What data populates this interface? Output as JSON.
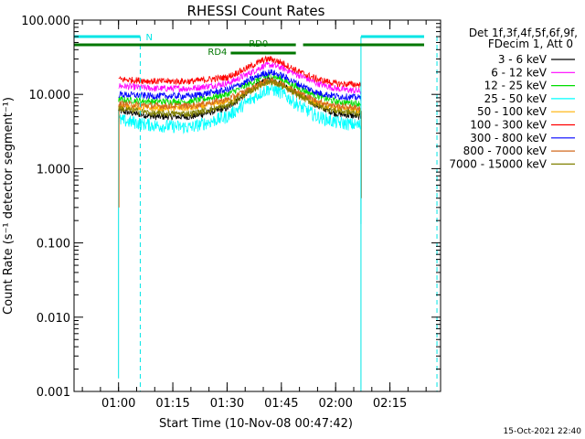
{
  "chart_data": {
    "type": "line",
    "title": "RHESSI Count Rates",
    "xlabel": "Start Time (10-Nov-08 00:47:42)",
    "ylabel": "Count Rate (s⁻¹ detector segment⁻¹)",
    "y_scale": "log",
    "ylim": [
      0.001,
      100
    ],
    "xlim": [
      "00:47:42",
      "02:29:00"
    ],
    "x_ticks": [
      "01:00",
      "01:15",
      "01:30",
      "01:45",
      "02:00",
      "02:15"
    ],
    "y_ticks": [
      "0.001",
      "0.010",
      "0.100",
      "1.000",
      "10.000",
      "100.000"
    ],
    "legend_header": [
      "Det 1f,3f,4f,5f,6f,9f,",
      "FDecim 1, Att 0"
    ],
    "legend_position": "right, outside plot",
    "series": [
      {
        "name": "3 - 6 keV",
        "color": "#000000",
        "x": [
          "01:00",
          "01:10",
          "01:20",
          "01:30",
          "01:35",
          "01:40",
          "01:42",
          "01:45",
          "01:50",
          "01:55",
          "02:00",
          "02:07"
        ],
        "y": [
          6.0,
          5.0,
          5.0,
          6.5,
          10,
          15,
          16,
          14,
          10,
          7,
          5.5,
          5.0
        ]
      },
      {
        "name": "6 - 12 keV",
        "color": "#ff00ff",
        "x": [
          "01:00",
          "01:10",
          "01:20",
          "01:30",
          "01:35",
          "01:40",
          "01:42",
          "01:45",
          "01:50",
          "01:55",
          "02:00",
          "02:07"
        ],
        "y": [
          13,
          12,
          12,
          14,
          18,
          24,
          25,
          23,
          18,
          14,
          12,
          11
        ]
      },
      {
        "name": "12 - 25 keV",
        "color": "#00dd00",
        "x": [
          "01:00",
          "01:10",
          "01:20",
          "01:30",
          "01:35",
          "01:40",
          "01:42",
          "01:45",
          "01:50",
          "01:55",
          "02:00",
          "02:07"
        ],
        "y": [
          8.5,
          8,
          8,
          10,
          13,
          17,
          18,
          16,
          12,
          9.5,
          8,
          7.5
        ]
      },
      {
        "name": "25 - 50 keV",
        "color": "#00ffff",
        "x": [
          "01:00",
          "01:10",
          "01:20",
          "01:30",
          "01:35",
          "01:40",
          "01:42",
          "01:45",
          "01:50",
          "01:55",
          "02:00",
          "02:07"
        ],
        "y": [
          4.5,
          3.8,
          3.6,
          5,
          7.5,
          11,
          12,
          10.5,
          7,
          5,
          4.2,
          3.8
        ]
      },
      {
        "name": "50 - 100 keV",
        "color": "#ffb000",
        "x": [
          "01:00",
          "01:10",
          "01:20",
          "01:30",
          "01:35",
          "01:40",
          "01:42",
          "01:45",
          "01:50",
          "01:55",
          "02:00",
          "02:07"
        ],
        "y": [
          7,
          6.5,
          6.5,
          8,
          10.5,
          14,
          15,
          13.5,
          10,
          7.5,
          6.5,
          6
        ]
      },
      {
        "name": "100 - 300 keV",
        "color": "#ff0000",
        "x": [
          "01:00",
          "01:10",
          "01:20",
          "01:30",
          "01:35",
          "01:40",
          "01:42",
          "01:45",
          "01:50",
          "01:55",
          "02:00",
          "02:07"
        ],
        "y": [
          16,
          15,
          15,
          17,
          22,
          29,
          30,
          27,
          20,
          16,
          14,
          13.5
        ]
      },
      {
        "name": "300 - 800 keV",
        "color": "#0000ff",
        "x": [
          "01:00",
          "01:10",
          "01:20",
          "01:30",
          "01:35",
          "01:40",
          "01:42",
          "01:45",
          "01:50",
          "01:55",
          "02:00",
          "02:07"
        ],
        "y": [
          10,
          9.5,
          9.5,
          11.5,
          14.5,
          19,
          20,
          18,
          13.5,
          10.5,
          9.5,
          9
        ]
      },
      {
        "name": "800 - 7000 keV",
        "color": "#d2691e",
        "x": [
          "01:00",
          "01:10",
          "01:20",
          "01:30",
          "01:35",
          "01:40",
          "01:42",
          "01:45",
          "01:50",
          "01:55",
          "02:00",
          "02:07"
        ],
        "y": [
          7.5,
          7,
          7,
          8.5,
          11,
          14.5,
          15.5,
          14,
          10.5,
          8,
          7,
          6.5
        ]
      },
      {
        "name": "7000 - 15000 keV",
        "color": "#808000",
        "x": [
          "01:00",
          "01:10",
          "01:20",
          "01:30",
          "01:35",
          "01:40",
          "01:42",
          "01:45",
          "01:50",
          "01:55",
          "02:00",
          "02:07"
        ],
        "y": [
          6.5,
          5.5,
          5.5,
          7,
          10,
          14,
          15,
          13,
          9.5,
          7,
          6,
          5.5
        ]
      }
    ],
    "annotations": {
      "night_label": "N",
      "rd0_label": "RD0",
      "rd4_label": "RD4",
      "flag_color_night": "#00e5e5",
      "flag_color_rd": "#007700"
    },
    "footer_date": "15-Oct-2021 22:40"
  }
}
